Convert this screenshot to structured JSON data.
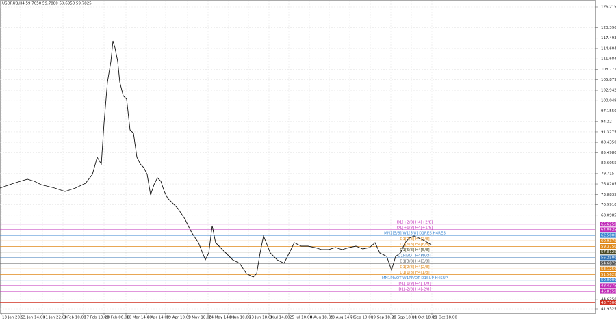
{
  "chart_data": {
    "type": "line",
    "title": "USDRUB,H4  59.7050 59.7880 59.6950 59.7825",
    "series": [
      {
        "name": "USDRUB",
        "color": "#111111",
        "x": [
          0,
          40,
          80,
          100,
          120,
          160,
          190,
          220,
          250,
          270,
          284,
          296,
          304,
          314,
          324,
          330,
          336,
          344,
          350,
          360,
          370,
          380,
          390,
          400,
          410,
          420,
          430,
          440,
          450,
          460,
          470,
          480,
          490,
          500,
          520,
          540,
          560,
          580,
          600,
          610,
          620,
          630,
          640,
          660,
          680,
          700,
          720,
          740,
          750,
          760,
          770,
          790,
          810,
          830,
          840,
          860,
          880,
          900,
          920,
          940,
          960,
          980,
          1000,
          1020,
          1040,
          1060,
          1080,
          1096,
          1110,
          1130,
          1144,
          1156,
          1170,
          1184,
          1196,
          1210,
          1224,
          1240,
          1260
        ],
        "values": [
          75.69,
          77.02,
          78.16,
          77.59,
          76.63,
          75.69,
          74.73,
          75.69,
          77.02,
          79.5,
          84.27,
          82.36,
          93.8,
          105.24,
          110.96,
          116.68,
          114.77,
          110.96,
          105.24,
          101.43,
          100.47,
          91.89,
          90.94,
          84.27,
          82.36,
          81.41,
          79.5,
          73.78,
          76.63,
          78.55,
          77.59,
          74.73,
          72.82,
          71.87,
          69.96,
          67.1,
          63.29,
          60.43,
          55.66,
          57.57,
          65.19,
          60.43,
          59.47,
          57.57,
          55.66,
          54.71,
          51.84,
          50.89,
          51.84,
          57.57,
          62.33,
          57.57,
          55.66,
          54.71,
          56.61,
          60.43,
          59.47,
          59.47,
          59.09,
          58.52,
          58.52,
          59.09,
          58.52,
          59.09,
          59.47,
          58.71,
          59.09,
          60.43,
          57.57,
          56.61,
          52.8,
          56.61,
          57.57,
          60.43,
          61.76,
          62.33,
          61.76,
          61.0,
          59.85
        ]
      }
    ],
    "xlim": [
      0,
      1740
    ],
    "xticks": [
      {
        "value": 4,
        "label": "13 Jan 2022"
      },
      {
        "value": 60,
        "label": "21 Jan 14:00"
      },
      {
        "value": 124,
        "label": "31 Jan 22:00"
      },
      {
        "value": 184,
        "label": "9 Feb 10:00"
      },
      {
        "value": 244,
        "label": "17 Feb 18:00"
      },
      {
        "value": 304,
        "label": "28 Feb 06:00"
      },
      {
        "value": 368,
        "label": "10 Mar 14:00"
      },
      {
        "value": 428,
        "label": "4 Apr 14:00"
      },
      {
        "value": 484,
        "label": "19 Apr 10:00"
      },
      {
        "value": 548,
        "label": "5 May 18:00"
      },
      {
        "value": 608,
        "label": "24 May 14:00"
      },
      {
        "value": 668,
        "label": "8 Jun 10:00"
      },
      {
        "value": 726,
        "label": "23 Jun 18:00"
      },
      {
        "value": 786,
        "label": "8 Jul 14:00"
      },
      {
        "value": 844,
        "label": "25 Jul 10:00"
      },
      {
        "value": 904,
        "label": "8 Aug 18:00"
      },
      {
        "value": 962,
        "label": "23 Aug 14:00"
      },
      {
        "value": 1022,
        "label": "7 Sep 10:00"
      },
      {
        "value": 1082,
        "label": "19 Sep 18:00"
      },
      {
        "value": 1142,
        "label": "29 Sep 18:00"
      },
      {
        "value": 1202,
        "label": "11 Oct 18:00"
      },
      {
        "value": 1262,
        "label": "21 Oct 18:00"
      }
    ],
    "ylim": [
      41.9325,
      126.2155
    ],
    "yticks": [
      {
        "value": 41.9325,
        "label": "41.9325"
      },
      {
        "value": 44.625,
        "label": "44.6250"
      },
      {
        "value": 68.0985,
        "label": "68.0985"
      },
      {
        "value": 70.991,
        "label": "70.9910"
      },
      {
        "value": 73.8835,
        "label": "73.8835"
      },
      {
        "value": 76.8205,
        "label": "76.8205"
      },
      79.715,
      {
        "value": 82.6055,
        "label": "82.6055"
      },
      {
        "value": 85.498,
        "label": "85.4980"
      },
      {
        "value": 88.435,
        "label": "88.4350"
      },
      {
        "value": 91.3275,
        "label": "91.3275"
      },
      94.22,
      {
        "value": 97.155,
        "label": "97.1550"
      },
      {
        "value": 100.0495,
        "label": "100.0495"
      },
      {
        "value": 102.942,
        "label": "102.9420"
      },
      {
        "value": 105.879,
        "label": "105.8790"
      },
      {
        "value": 108.7715,
        "label": "108.7715"
      },
      {
        "value": 111.684,
        "label": "111.6840"
      },
      114.604,
      {
        "value": 117.4935,
        "label": "117.4935"
      },
      {
        "value": 120.396,
        "label": "120.3960"
      },
      126.2155
    ],
    "grid": true,
    "levels": [
      {
        "name": "D1[+2/8] H4[+2/8]",
        "value": 65.625,
        "value_label": "65.6250",
        "color": "#c02cb8"
      },
      {
        "name": "D1[+1/8] H4[+1/8]",
        "value": 64.0625,
        "value_label": "64.0625",
        "color": "#c02cb8"
      },
      {
        "name": "MN1[5/8] W1[5/8] D1RES H4RES",
        "value": 62.5,
        "value_label": "62.5000",
        "color": "#3a86d0"
      },
      {
        "name": "D1[7/8] H4[7/8]",
        "value": 60.9375,
        "value_label": "60.9375",
        "color": "#e08a1c"
      },
      {
        "name": "D1[6/8] H4[6/8]",
        "value": 59.375,
        "value_label": "59.3750",
        "color": "#e08a1c"
      },
      {
        "name": "D1[5/8] H4[5/8]",
        "value": 57.8125,
        "value_label": "57.8125",
        "color": "#4a4a26"
      },
      {
        "name": "D1PIVOT H4PIVOT",
        "value": 56.25,
        "value_label": "56.2500",
        "color": "#3474b4"
      },
      {
        "name": "D1[3/8] H4[3/8]",
        "value": 54.6875,
        "value_label": "54.6875",
        "color": "#5a5a5a"
      },
      {
        "name": "D1[2/8] H4[2/8]",
        "value": 53.125,
        "value_label": "53.1250",
        "color": "#e08a1c"
      },
      {
        "name": "D1[1/8] H4[1/8]",
        "value": 51.5625,
        "value_label": "51.5625",
        "color": "#e08a1c"
      },
      {
        "name": "MN1PIVOT W1PIVOT D1SUP H4SUP",
        "value": 50,
        "value_label": "50.0000",
        "color": "#3a86d0"
      },
      {
        "name": "D1[-1/8] H4[-1/8]",
        "value": 48.4375,
        "value_label": "48.4375",
        "color": "#c02cb8"
      },
      {
        "name": "D1[-2/8] H4[-2/8]",
        "value": 46.875,
        "value_label": "46.8750",
        "color": "#c02cb8"
      },
      {
        "value": 43.75,
        "value_label": "43.7500",
        "color": "#d03020"
      }
    ]
  }
}
